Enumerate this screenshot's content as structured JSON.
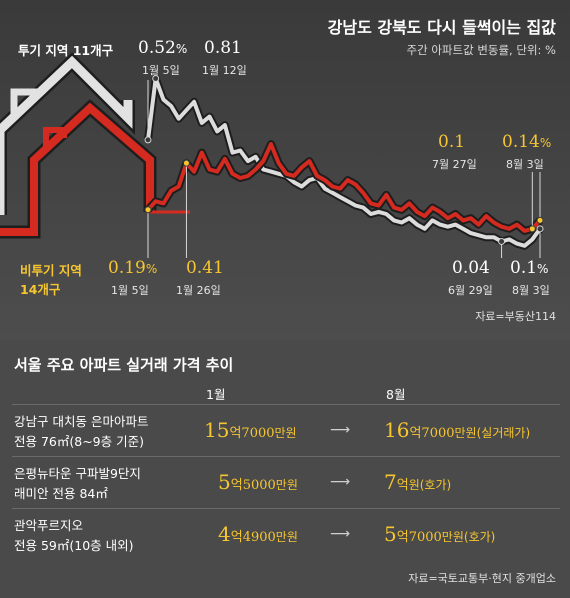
{
  "header": {
    "title": "강남도 강북도 다시 들썩이는 집값",
    "subtitle": "주간 아파트값 변동률, 단위: %",
    "source": "자료=부동산114"
  },
  "chart_data": {
    "type": "line",
    "title": "강남도 강북도 다시 들썩이는 집값",
    "subtitle": "주간 아파트값 변동률, 단위: %",
    "xlabel": "",
    "ylabel": "",
    "ylim": [
      0.0,
      0.85
    ],
    "grid": false,
    "series": [
      {
        "name": "투기 지역 11개구",
        "color": "#dcdcdc",
        "values": [
          0.52,
          0.81,
          0.71,
          0.68,
          0.62,
          0.66,
          0.7,
          0.6,
          0.63,
          0.56,
          0.59,
          0.46,
          0.47,
          0.42,
          0.44,
          0.38,
          0.37,
          0.36,
          0.35,
          0.32,
          0.3,
          0.33,
          0.34,
          0.29,
          0.27,
          0.25,
          0.23,
          0.21,
          0.2,
          0.17,
          0.18,
          0.17,
          0.14,
          0.13,
          0.15,
          0.12,
          0.1,
          0.14,
          0.12,
          0.11,
          0.12,
          0.1,
          0.08,
          0.07,
          0.06,
          0.06,
          0.04,
          0.05,
          0.03,
          0.02,
          0.05,
          0.1
        ],
        "annotations": [
          {
            "label": "0.52%",
            "date": "1월 5일",
            "index": 0
          },
          {
            "label": "0.81",
            "date": "1월 12일",
            "index": 1
          },
          {
            "label": "0.04",
            "date": "6월 29일",
            "index": 46
          },
          {
            "label": "0.1%",
            "date": "8월 3일",
            "index": 51
          }
        ]
      },
      {
        "name": "비투기 지역 14개구",
        "color": "#d42a20",
        "values": [
          0.19,
          0.23,
          0.22,
          0.28,
          0.3,
          0.41,
          0.37,
          0.46,
          0.38,
          0.37,
          0.43,
          0.36,
          0.34,
          0.35,
          0.38,
          0.42,
          0.5,
          0.41,
          0.36,
          0.35,
          0.39,
          0.42,
          0.35,
          0.33,
          0.3,
          0.29,
          0.33,
          0.31,
          0.27,
          0.22,
          0.21,
          0.26,
          0.2,
          0.19,
          0.22,
          0.18,
          0.16,
          0.2,
          0.18,
          0.15,
          0.17,
          0.14,
          0.15,
          0.12,
          0.16,
          0.13,
          0.11,
          0.1,
          0.12,
          0.09,
          0.1,
          0.14
        ],
        "annotations": [
          {
            "label": "0.19%",
            "date": "1월 5일",
            "index": 0
          },
          {
            "label": "0.41",
            "date": "1월 26일",
            "index": 5
          },
          {
            "label": "0.1",
            "date": "7월 27일",
            "index": 50
          },
          {
            "label": "0.14%",
            "date": "8월 3일",
            "index": 51
          }
        ]
      }
    ]
  },
  "labels": {
    "spec_name": "투기 지역 11개구",
    "nonspec_name_1": "비투기 지역",
    "nonspec_name_2": "14개구",
    "w_start_val": "0.52",
    "w_start_pct": "%",
    "w_start_date": "1월 5일",
    "w_peak_val": "0.81",
    "w_peak_date": "1월 12일",
    "w_jun_val": "0.04",
    "w_jun_date": "6월 29일",
    "w_end_val": "0.1",
    "w_end_pct": "%",
    "w_end_date": "8월 3일",
    "r_start_val": "0.19",
    "r_start_pct": "%",
    "r_start_date": "1월 5일",
    "r_jan_val": "0.41",
    "r_jan_date": "1월 26일",
    "r_jul_val": "0.1",
    "r_jul_date": "7월 27일",
    "r_end_val": "0.14",
    "r_end_pct": "%",
    "r_end_date": "8월 3일"
  },
  "table": {
    "title": "서울 주요 아파트 실거래 가격 추이",
    "col_from": "1월",
    "col_to": "8월",
    "arrow": "⟶",
    "source": "자료=국토교통부·현지 중개업소",
    "rows": [
      {
        "name1": "강남구 대치동 은마아파트",
        "name2": "전용 76㎡(8~9층 기준)",
        "from_eok": "15",
        "from_eok_unit": "억",
        "from_rest": "7000",
        "from_unit": "만원",
        "from_note": "",
        "to_eok": "16",
        "to_eok_unit": "억",
        "to_rest": "7000",
        "to_unit": "만원",
        "to_note": "(실거래가)"
      },
      {
        "name1": "은평뉴타운 구파발9단지",
        "name2": "래미안 전용 84㎡",
        "from_eok": "5",
        "from_eok_unit": "억",
        "from_rest": "5000",
        "from_unit": "만원",
        "from_note": "",
        "to_eok": "7",
        "to_eok_unit": "억",
        "to_rest": "",
        "to_unit": "원",
        "to_note": "(호가)"
      },
      {
        "name1": "관악푸르지오",
        "name2": "전용 59㎡(10층 내외)",
        "from_eok": "4",
        "from_eok_unit": "억",
        "from_rest": "4900",
        "from_unit": "만원",
        "from_note": "",
        "to_eok": "5",
        "to_eok_unit": "억",
        "to_rest": "7000",
        "to_unit": "만원",
        "to_note": "(호가)"
      }
    ]
  }
}
